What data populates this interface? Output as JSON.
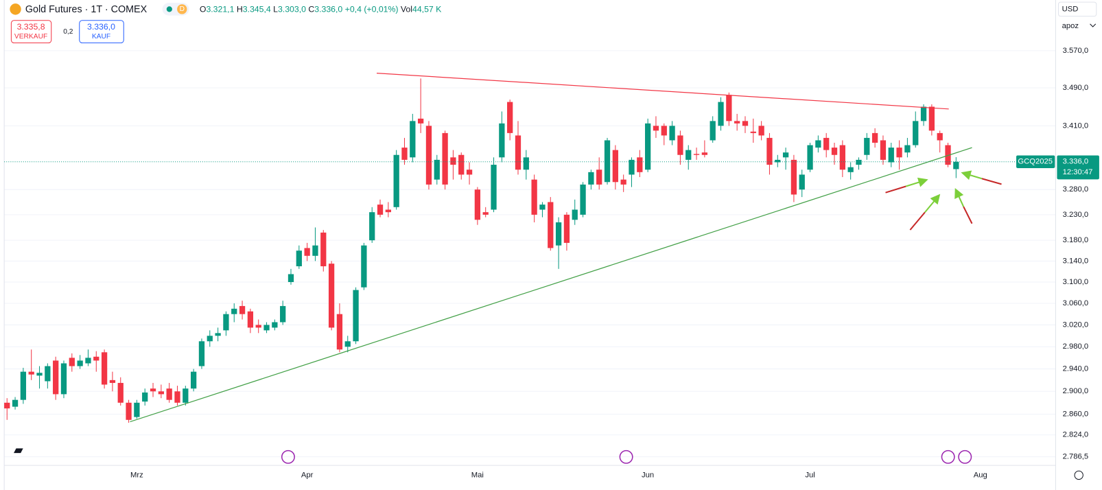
{
  "chart_data": {
    "type": "candlestick",
    "log_scale": true,
    "grid": true,
    "up_color": "#089981",
    "down_color": "#f23645",
    "header": {
      "symbol": "Gold Futures · 1T · COMEX",
      "badge": "D",
      "ohlc": [
        {
          "label": "O",
          "value": "3.321,1"
        },
        {
          "label": "H",
          "value": "3.345,4"
        },
        {
          "label": "L",
          "value": "3.303,0"
        },
        {
          "label": "C",
          "value": "3.336,0"
        }
      ],
      "change": "+0,4 (+0,01%)",
      "volume_label": "Vol",
      "volume": "44,57 K"
    },
    "sell": {
      "price": "3.335,8",
      "label": "VERKAUF"
    },
    "spread": "0,2",
    "buy": {
      "price": "3.336,0",
      "label": "KAUF"
    },
    "currency": "USD",
    "unit": "apoz",
    "last_price": {
      "value": 3336,
      "label": "3.336,0"
    },
    "ticker": "GCQ2025",
    "countdown": "12:30:47",
    "ylim": [
      2772,
      3682
    ],
    "yticks": [
      {
        "value": 3570,
        "label": "3.570,0"
      },
      {
        "value": 3490,
        "label": "3.490,0"
      },
      {
        "value": 3410,
        "label": "3.410,0"
      },
      {
        "value": 3280,
        "label": "3.280,0"
      },
      {
        "value": 3230,
        "label": "3.230,0"
      },
      {
        "value": 3180,
        "label": "3.180,0"
      },
      {
        "value": 3140,
        "label": "3.140,0"
      },
      {
        "value": 3100,
        "label": "3.100,0"
      },
      {
        "value": 3060,
        "label": "3.060,0"
      },
      {
        "value": 3020,
        "label": "3.020,0"
      },
      {
        "value": 2980,
        "label": "2.980,0"
      },
      {
        "value": 2940,
        "label": "2.940,0"
      },
      {
        "value": 2900,
        "label": "2.900,0"
      },
      {
        "value": 2860,
        "label": "2.860,0"
      },
      {
        "value": 2824,
        "label": "2.824,0"
      },
      {
        "value": 2786.5,
        "label": "2.786,5"
      }
    ],
    "categories": [
      null,
      null,
      null,
      null,
      null,
      null,
      null,
      null,
      null,
      null,
      null,
      null,
      null,
      null,
      null,
      null,
      "Mrz",
      null,
      null,
      null,
      null,
      null,
      null,
      null,
      null,
      null,
      null,
      null,
      null,
      null,
      null,
      null,
      null,
      null,
      null,
      null,
      null,
      "Apr",
      null,
      null,
      null,
      null,
      null,
      null,
      null,
      null,
      null,
      null,
      null,
      null,
      null,
      null,
      null,
      null,
      null,
      null,
      null,
      null,
      "Mai",
      null,
      null,
      null,
      null,
      null,
      null,
      null,
      null,
      null,
      null,
      null,
      null,
      null,
      null,
      null,
      null,
      null,
      null,
      null,
      null,
      "Jun",
      null,
      null,
      null,
      null,
      null,
      null,
      null,
      null,
      null,
      null,
      null,
      null,
      null,
      null,
      null,
      null,
      null,
      null,
      null,
      "Jul",
      null,
      null,
      null,
      null,
      null,
      null,
      null,
      null,
      null,
      null,
      null,
      null,
      null,
      null,
      null,
      null,
      null,
      null,
      null,
      null,
      "Aug"
    ],
    "open": [
      2880,
      2873,
      2885,
      2935,
      2928,
      2918,
      2955,
      2895,
      2960,
      2945,
      2950,
      2962,
      2970,
      2920,
      2915,
      2880,
      2855,
      2882,
      2905,
      2900,
      2905,
      2900,
      2880,
      2905,
      2945,
      2990,
      3000,
      3010,
      3040,
      3055,
      3045,
      3020,
      3010,
      3015,
      3025,
      3100,
      3130,
      3165,
      3150,
      3195,
      3135,
      3040,
      2980,
      2990,
      3090,
      3180,
      3250,
      3240,
      3245,
      3365,
      3345,
      3425,
      3410,
      3300,
      3395,
      3345,
      3350,
      3320,
      3280,
      3235,
      3240,
      3345,
      3460,
      3390,
      3320,
      3300,
      3240,
      3255,
      3170,
      3230,
      3220,
      3230,
      3290,
      3320,
      3295,
      3360,
      3300,
      3310,
      3345,
      3320,
      3410,
      3410,
      3380,
      3390,
      3340,
      3352,
      3355,
      3380,
      3410,
      3475,
      3420,
      3420,
      3398,
      3410,
      3385,
      3335,
      3345,
      3340,
      3280,
      3320,
      3365,
      3385,
      3365,
      3370,
      3315,
      3330,
      3350,
      3395,
      3380,
      3335,
      3365,
      3355,
      3370,
      3420,
      3450,
      3395,
      3370,
      3321.1,
      null,
      null,
      null
    ],
    "high": [
      2888,
      2890,
      2942,
      2975,
      2945,
      2950,
      2962,
      2955,
      2968,
      2965,
      2975,
      2972,
      2975,
      2935,
      2925,
      2885,
      2885,
      2905,
      2915,
      2912,
      2915,
      2910,
      2910,
      2940,
      2995,
      3010,
      3015,
      3045,
      3060,
      3065,
      3050,
      3030,
      3025,
      3030,
      3065,
      3125,
      3170,
      3175,
      3205,
      3200,
      3140,
      3060,
      3000,
      3090,
      3175,
      3245,
      3260,
      3255,
      3360,
      3385,
      3435,
      3510,
      3420,
      3350,
      3400,
      3360,
      3355,
      3335,
      3285,
      3245,
      3345,
      3440,
      3465,
      3420,
      3360,
      3310,
      3255,
      3265,
      3225,
      3235,
      3260,
      3295,
      3320,
      3345,
      3385,
      3370,
      3310,
      3345,
      3360,
      3425,
      3430,
      3415,
      3420,
      3400,
      3370,
      3365,
      3380,
      3430,
      3470,
      3480,
      3435,
      3430,
      3425,
      3420,
      3395,
      3350,
      3365,
      3350,
      3320,
      3375,
      3390,
      3395,
      3375,
      3380,
      3335,
      3345,
      3395,
      3405,
      3390,
      3375,
      3380,
      3385,
      3440,
      3455,
      3455,
      3400,
      3375,
      3345.4,
      null,
      null,
      null
    ],
    "low": [
      2850,
      2868,
      2878,
      2920,
      2905,
      2905,
      2885,
      2888,
      2935,
      2940,
      2945,
      2935,
      2905,
      2900,
      2875,
      2845,
      2852,
      2875,
      2890,
      2888,
      2880,
      2875,
      2875,
      2900,
      2940,
      2980,
      2990,
      3000,
      3025,
      3030,
      3005,
      3005,
      3005,
      3010,
      3020,
      3095,
      3125,
      3140,
      3140,
      3120,
      3010,
      2970,
      2970,
      2985,
      3085,
      3175,
      3225,
      3225,
      3240,
      3330,
      3335,
      3395,
      3280,
      3290,
      3280,
      3300,
      3300,
      3290,
      3210,
      3225,
      3235,
      3335,
      3380,
      3310,
      3300,
      3215,
      3225,
      3160,
      3125,
      3160,
      3210,
      3225,
      3280,
      3280,
      3290,
      3280,
      3275,
      3285,
      3305,
      3315,
      3385,
      3370,
      3370,
      3330,
      3320,
      3340,
      3345,
      3375,
      3400,
      3410,
      3400,
      3395,
      3375,
      3380,
      3310,
      3325,
      3320,
      3255,
      3265,
      3315,
      3355,
      3345,
      3330,
      3305,
      3300,
      3320,
      3340,
      3365,
      3330,
      3325,
      3320,
      3345,
      3365,
      3410,
      3390,
      3355,
      3325,
      3303.0,
      null,
      null,
      null
    ],
    "close": [
      2870,
      2885,
      2935,
      2930,
      2933,
      2945,
      2895,
      2950,
      2945,
      2955,
      2960,
      2955,
      2912,
      2915,
      2880,
      2850,
      2880,
      2898,
      2900,
      2895,
      2885,
      2880,
      2905,
      2935,
      2990,
      3000,
      3005,
      3040,
      3050,
      3040,
      3015,
      3015,
      3020,
      3025,
      3055,
      3115,
      3160,
      3150,
      3170,
      3130,
      3015,
      2975,
      2990,
      3085,
      3170,
      3235,
      3230,
      3235,
      3350,
      3340,
      3420,
      3415,
      3290,
      3340,
      3290,
      3330,
      3310,
      3310,
      3220,
      3230,
      3330,
      3415,
      3395,
      3320,
      3345,
      3230,
      3250,
      3165,
      3215,
      3175,
      3240,
      3290,
      3315,
      3290,
      3380,
      3295,
      3290,
      3340,
      3315,
      3415,
      3400,
      3390,
      3410,
      3350,
      3360,
      3350,
      3350,
      3420,
      3460,
      3420,
      3415,
      3410,
      3395,
      3390,
      3330,
      3340,
      3355,
      3270,
      3310,
      3370,
      3380,
      3360,
      3350,
      3320,
      3325,
      3340,
      3385,
      3375,
      3340,
      3365,
      3345,
      3370,
      3420,
      3450,
      3400,
      3380,
      3330,
      3336.0,
      null,
      null,
      null
    ]
  }
}
